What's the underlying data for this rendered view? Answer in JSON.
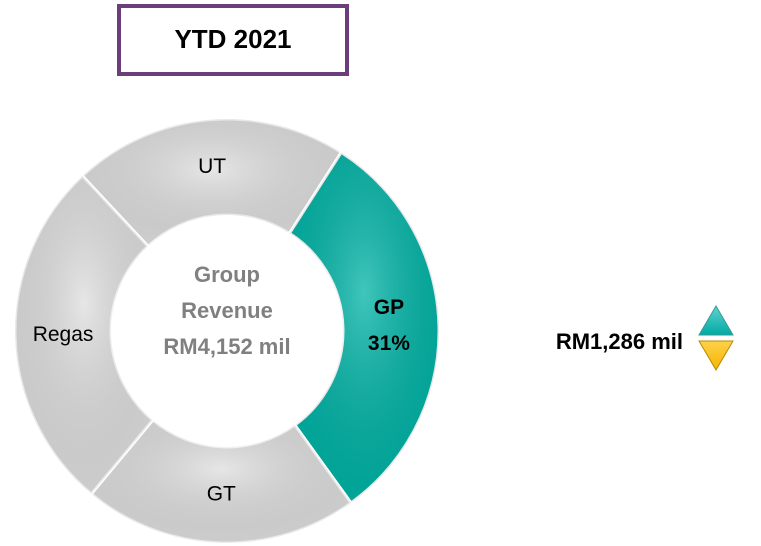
{
  "chart_data": {
    "type": "donut",
    "title": "YTD 2021",
    "categories": [
      "UT",
      "GP",
      "GT",
      "Regas"
    ],
    "values": [
      21,
      31,
      21,
      27
    ],
    "value_labels": [
      null,
      "31%",
      null,
      null
    ],
    "colors": [
      "#dedede",
      "#00b3a6",
      "#dedede",
      "#dedede"
    ],
    "label_colors": [
      "#000000",
      "#000000",
      "#000000",
      "#000000"
    ],
    "center_label": [
      "Group",
      "Revenue",
      "RM4,152 mil"
    ],
    "annotation": "RM1,286 mil"
  }
}
